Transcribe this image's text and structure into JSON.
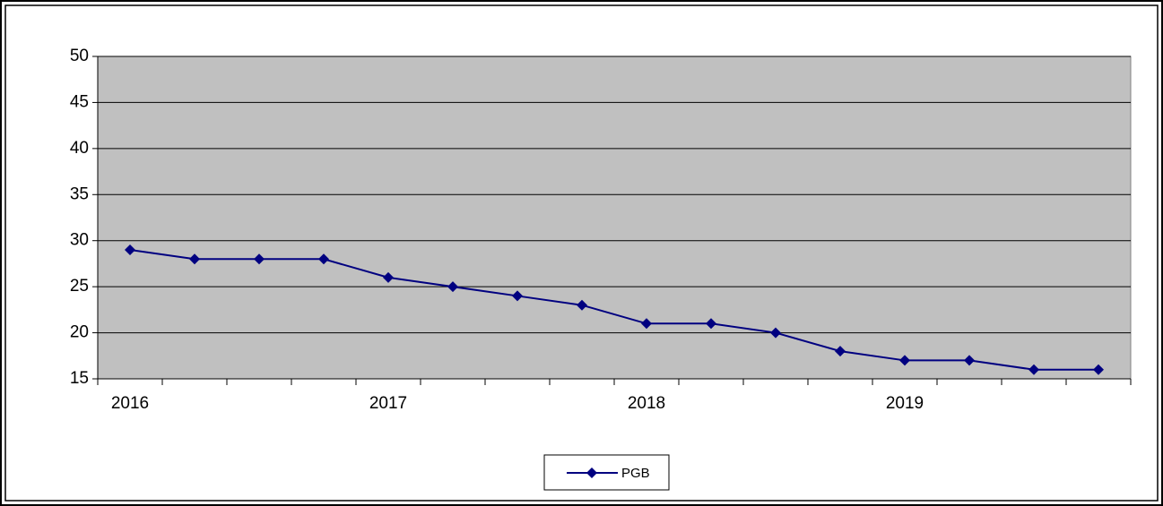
{
  "chart_data": {
    "type": "line",
    "categories": [
      "2016",
      null,
      null,
      null,
      "2017",
      null,
      null,
      null,
      "2018",
      null,
      null,
      null,
      "2019",
      null,
      null,
      null
    ],
    "series": [
      {
        "name": "PGB",
        "color": "#000080",
        "values": [
          29,
          28,
          28,
          28,
          26,
          25,
          24,
          23,
          21,
          21,
          20,
          18,
          17,
          17,
          16,
          16
        ]
      }
    ],
    "ylim": [
      15,
      50
    ],
    "yticks": [
      15,
      20,
      25,
      30,
      35,
      40,
      45,
      50
    ],
    "grid": true,
    "plot_background": "#c0c0c0",
    "legend": "bottom"
  }
}
